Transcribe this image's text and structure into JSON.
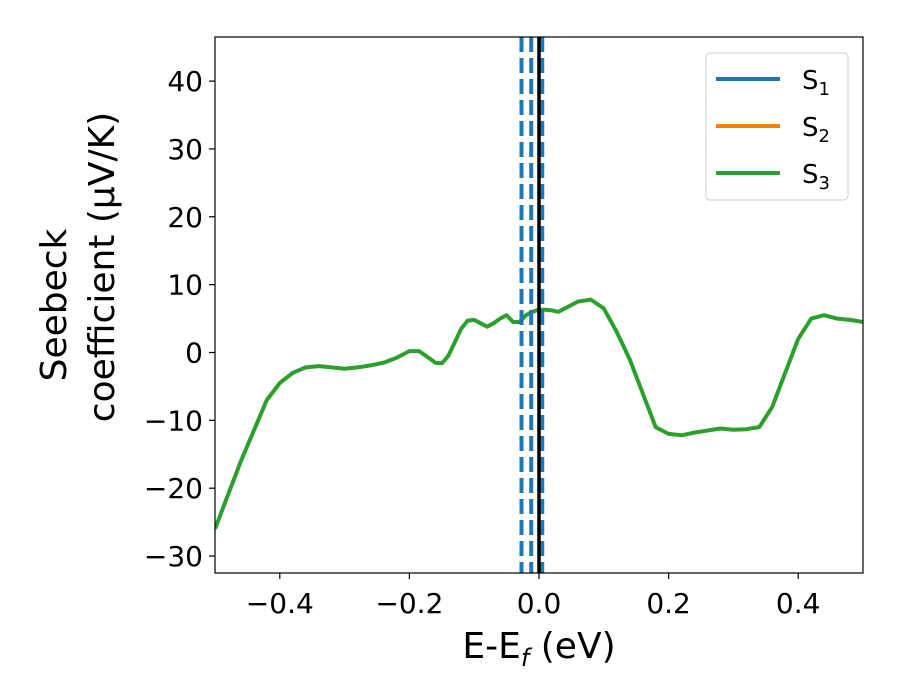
{
  "chart_data": {
    "type": "line",
    "xlabel_main": "E-E",
    "xlabel_sub": "f",
    "xlabel_unit": " (eV)",
    "ylabel_line1": "Seebeck",
    "ylabel_line2": "coefficient  (μV/K)",
    "xlim": [
      -0.5,
      0.5
    ],
    "ylim": [
      -32.5,
      46.5
    ],
    "xticks": [
      -0.4,
      -0.2,
      0.0,
      0.2,
      0.4
    ],
    "xtick_labels": [
      "−0.4",
      "−0.2",
      "0.0",
      "0.2",
      "0.4"
    ],
    "yticks": [
      -30,
      -20,
      -10,
      0,
      10,
      20,
      30,
      40
    ],
    "ytick_labels": [
      "−30",
      "−20",
      "−10",
      "0",
      "10",
      "20",
      "30",
      "40"
    ],
    "grid": false,
    "legend_position": "top-right",
    "series": [
      {
        "name": "S",
        "sub": "1",
        "color": "#1f77b4"
      },
      {
        "name": "S",
        "sub": "2",
        "color": "#ff7f0e"
      },
      {
        "name": "S",
        "sub": "3",
        "color": "#2ca02c",
        "x": [
          -0.5,
          -0.46,
          -0.42,
          -0.4,
          -0.38,
          -0.36,
          -0.34,
          -0.32,
          -0.3,
          -0.28,
          -0.26,
          -0.24,
          -0.22,
          -0.2,
          -0.185,
          -0.17,
          -0.16,
          -0.15,
          -0.14,
          -0.13,
          -0.12,
          -0.11,
          -0.1,
          -0.09,
          -0.08,
          -0.07,
          -0.06,
          -0.05,
          -0.04,
          -0.03,
          -0.02,
          -0.01,
          0.0,
          0.01,
          0.02,
          0.03,
          0.04,
          0.06,
          0.08,
          0.1,
          0.12,
          0.14,
          0.16,
          0.18,
          0.2,
          0.22,
          0.24,
          0.26,
          0.28,
          0.3,
          0.32,
          0.34,
          0.36,
          0.38,
          0.4,
          0.42,
          0.44,
          0.46,
          0.48,
          0.5
        ],
        "y": [
          -26,
          -16,
          -7,
          -4.5,
          -3,
          -2.2,
          -2,
          -2.2,
          -2.4,
          -2.2,
          -1.9,
          -1.5,
          -0.8,
          0.2,
          0.2,
          -0.8,
          -1.5,
          -1.6,
          -0.5,
          1.5,
          3.5,
          4.7,
          4.8,
          4.3,
          3.8,
          4.3,
          5.0,
          5.5,
          4.5,
          4.5,
          5.5,
          6.0,
          6.3,
          6.3,
          6.2,
          6.0,
          6.5,
          7.5,
          7.8,
          6.5,
          3.0,
          -1,
          -6,
          -11,
          -12,
          -12.2,
          -11.8,
          -11.5,
          -11.2,
          -11.4,
          -11.3,
          -11,
          -8,
          -3,
          2,
          5,
          5.5,
          5,
          4.8,
          4.5
        ]
      }
    ],
    "vlines": [
      {
        "x": -0.027,
        "style": "dashed",
        "color": "#1f77b4"
      },
      {
        "x": -0.012,
        "style": "dashed",
        "color": "#1f77b4"
      },
      {
        "x": 0.005,
        "style": "dashed",
        "color": "#1f77b4"
      },
      {
        "x": 0.0,
        "style": "solid",
        "color": "#000000"
      }
    ]
  }
}
